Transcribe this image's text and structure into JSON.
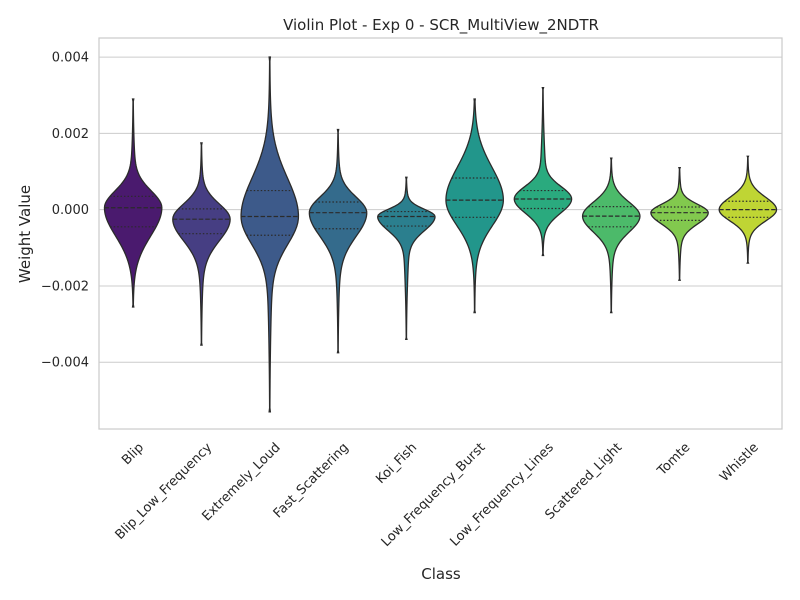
{
  "chart_data": {
    "type": "violin",
    "title": "Violin Plot - Exp 0 - SCR_MultiView_2NDTR",
    "xlabel": "Class",
    "ylabel": "Weight Value",
    "ylim": [
      -0.00575,
      0.0045
    ],
    "yticks": [
      -0.004,
      -0.002,
      0.0,
      0.002,
      0.004
    ],
    "ytick_labels": [
      "−0.004",
      "−0.002",
      "0.000",
      "0.002",
      "0.004"
    ],
    "grid": "horizontal",
    "categories": [
      "Blip",
      "Blip_Low_Frequency",
      "Extremely_Loud",
      "Fast_Scattering",
      "Koi_Fish",
      "Low_Frequency_Burst",
      "Low_Frequency_Lines",
      "Scattered_Light",
      "Tomte",
      "Whistle"
    ],
    "colors": [
      "#4a1a6e",
      "#463e83",
      "#3d5a8a",
      "#346b8c",
      "#2b7f8e",
      "#22968b",
      "#2aaa7e",
      "#4cba6a",
      "#82c94e",
      "#bfd534"
    ],
    "violins": [
      {
        "min": -0.00255,
        "q1": -0.00045,
        "median": 5e-05,
        "q3": 0.00035,
        "max": 0.0029
      },
      {
        "min": -0.00355,
        "q1": -0.00063,
        "median": -0.00025,
        "q3": 2e-05,
        "max": 0.00175
      },
      {
        "min": -0.0053,
        "q1": -0.00067,
        "median": -0.00018,
        "q3": 0.0005,
        "max": 0.004
      },
      {
        "min": -0.00375,
        "q1": -0.0005,
        "median": -8e-05,
        "q3": 0.0002,
        "max": 0.0021
      },
      {
        "min": -0.0034,
        "q1": -0.00043,
        "median": -0.00018,
        "q3": -5e-05,
        "max": 0.00085
      },
      {
        "min": -0.0027,
        "q1": -0.0002,
        "median": 0.00025,
        "q3": 0.00083,
        "max": 0.0029
      },
      {
        "min": -0.0012,
        "q1": 3e-05,
        "median": 0.00028,
        "q3": 0.0005,
        "max": 0.0032
      },
      {
        "min": -0.0027,
        "q1": -0.00045,
        "median": -0.00017,
        "q3": 8e-05,
        "max": 0.00135
      },
      {
        "min": -0.00185,
        "q1": -0.00028,
        "median": -8e-05,
        "q3": 7e-05,
        "max": 0.0011
      },
      {
        "min": -0.0014,
        "q1": -0.0002,
        "median": 0.0,
        "q3": 0.00022,
        "max": 0.0014
      }
    ]
  }
}
